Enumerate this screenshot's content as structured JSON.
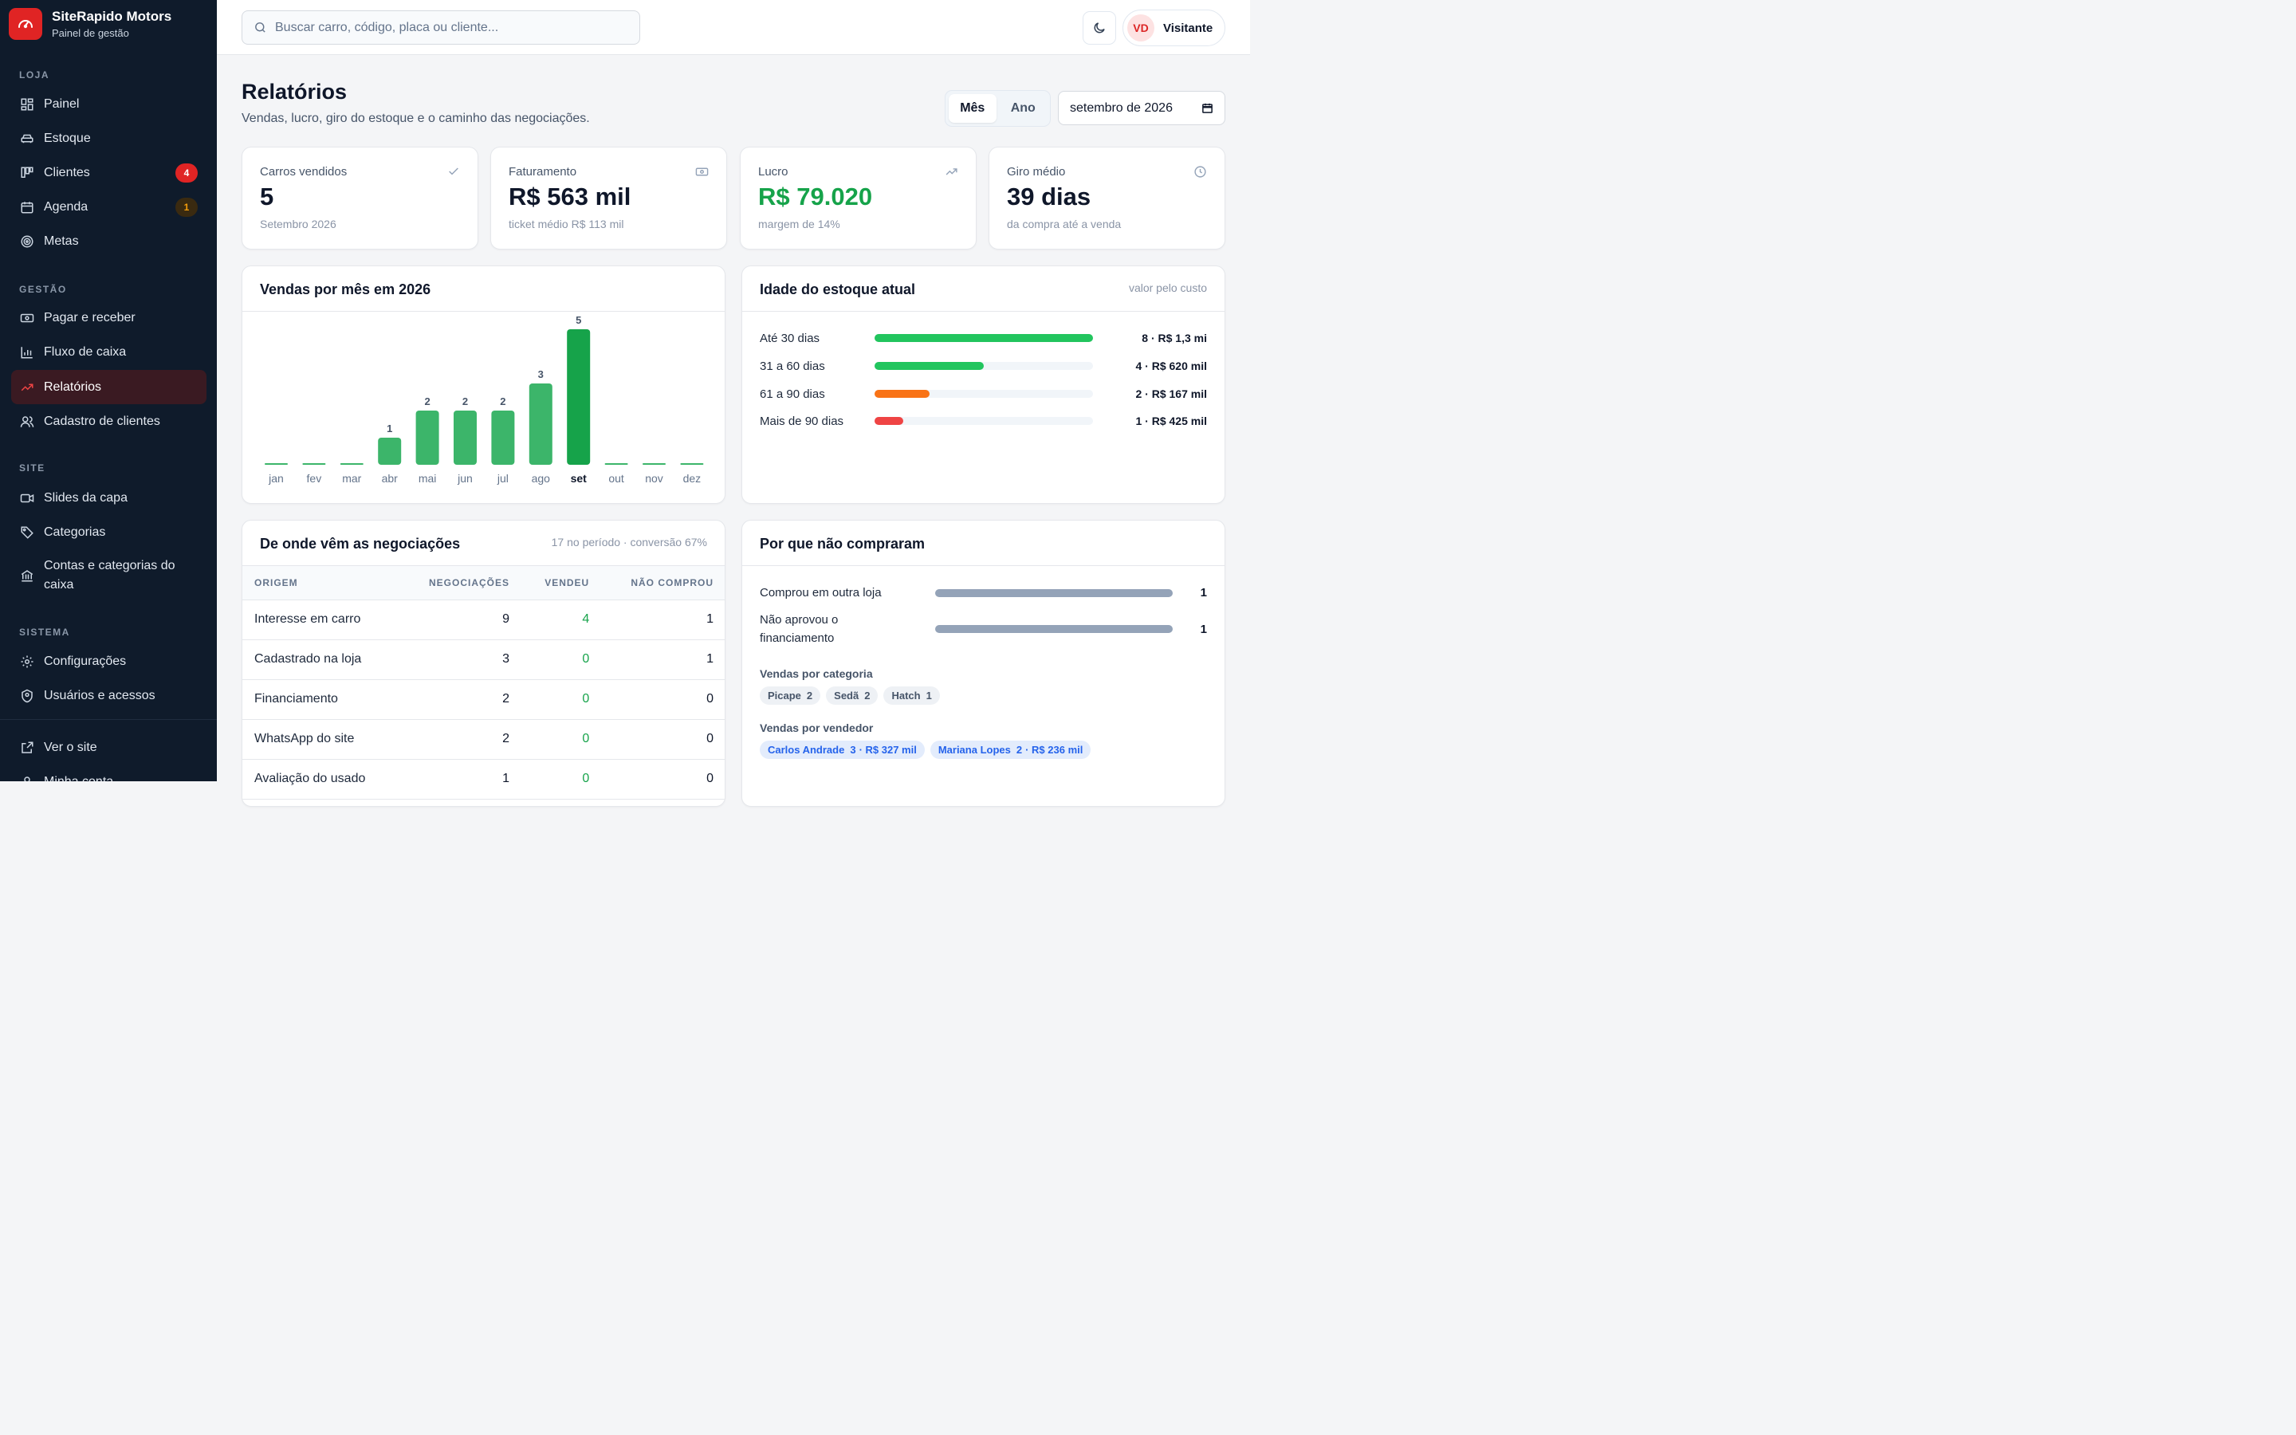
{
  "brand": {
    "name": "SiteRapido Motors",
    "subtitle": "Painel de gestão"
  },
  "sidebar": {
    "sections": {
      "loja": "LOJA",
      "gestao": "GESTÃO",
      "site": "SITE",
      "sistema": "SISTEMA"
    },
    "items": {
      "painel": "Painel",
      "estoque": "Estoque",
      "clientes": "Clientes",
      "clientes_badge": "4",
      "agenda": "Agenda",
      "agenda_badge": "1",
      "metas": "Metas",
      "pagar": "Pagar e receber",
      "fluxo": "Fluxo de caixa",
      "relatorios": "Relatórios",
      "cadastro": "Cadastro de clientes",
      "slides": "Slides da capa",
      "categorias": "Categorias",
      "contas": "Contas e categorias do caixa",
      "configuracoes": "Configurações",
      "usuarios": "Usuários e acessos",
      "ver_site": "Ver o site",
      "minha_conta": "Minha conta"
    }
  },
  "topbar": {
    "search_placeholder": "Buscar carro, código, placa ou cliente...",
    "user_initials": "VD",
    "user_name": "Visitante"
  },
  "header": {
    "title": "Relatórios",
    "subtitle": "Vendas, lucro, giro do estoque e o caminho das negociações.",
    "period_month": "Mês",
    "period_year": "Ano",
    "month_value": "setembro de 2026"
  },
  "kpis": [
    {
      "label": "Carros vendidos",
      "value": "5",
      "sub": "Setembro 2026",
      "icon": "check-icon"
    },
    {
      "label": "Faturamento",
      "value": "R$ 563 mil",
      "sub": "ticket médio R$ 113 mil",
      "icon": "money-icon"
    },
    {
      "label": "Lucro",
      "value": "R$ 79.020",
      "sub": "margem de 14%",
      "icon": "trending-up-icon",
      "color": "#16a34a"
    },
    {
      "label": "Giro médio",
      "value": "39 dias",
      "sub": "da compra até a venda",
      "icon": "clock-icon"
    }
  ],
  "sales_chart": {
    "title": "Vendas por mês em 2026"
  },
  "chart_data": {
    "type": "bar",
    "categories": [
      "jan",
      "fev",
      "mar",
      "abr",
      "mai",
      "jun",
      "jul",
      "ago",
      "set",
      "out",
      "nov",
      "dez"
    ],
    "values": [
      0,
      0,
      0,
      1,
      2,
      2,
      2,
      3,
      5,
      0,
      0,
      0
    ],
    "highlight": "set",
    "colors": {
      "bar": "#3cb56a",
      "highlight": "#16a34a"
    }
  },
  "stock_age": {
    "title": "Idade do estoque atual",
    "note": "valor pelo custo",
    "rows": [
      {
        "label": "Até 30 dias",
        "value": "8 · R$ 1,3 mi",
        "fraction": 1.0,
        "color": "#22c55e"
      },
      {
        "label": "31 a 60 dias",
        "value": "4 · R$ 620 mil",
        "fraction": 0.5,
        "color": "#22c55e"
      },
      {
        "label": "61 a 90 dias",
        "value": "2 · R$ 167 mil",
        "fraction": 0.25,
        "color": "#f97316"
      },
      {
        "label": "Mais de 90 dias",
        "value": "1 · R$ 425 mil",
        "fraction": 0.13,
        "color": "#ef4444"
      }
    ]
  },
  "origins": {
    "title": "De onde vêm as negociações",
    "note": "17 no período · conversão 67%",
    "headers": [
      "ORIGEM",
      "NEGOCIAÇÕES",
      "VENDEU",
      "NÃO COMPROU"
    ],
    "rows": [
      [
        "Interesse em carro",
        "9",
        "4",
        "1"
      ],
      [
        "Cadastrado na loja",
        "3",
        "0",
        "1"
      ],
      [
        "Financiamento",
        "2",
        "0",
        "0"
      ],
      [
        "WhatsApp do site",
        "2",
        "0",
        "0"
      ],
      [
        "Avaliação do usado",
        "1",
        "0",
        "0"
      ]
    ]
  },
  "why_not": {
    "title": "Por que não compraram",
    "rows": [
      {
        "label": "Comprou em outra loja",
        "value": "1",
        "fraction": 1.0
      },
      {
        "label": "Não aprovou o financiamento",
        "value": "1",
        "fraction": 1.0
      }
    ],
    "by_category_title": "Vendas por categoria",
    "by_category": [
      {
        "name": "Picape",
        "count": "2"
      },
      {
        "name": "Sedã",
        "count": "2"
      },
      {
        "name": "Hatch",
        "count": "1"
      }
    ],
    "by_seller_title": "Vendas por vendedor",
    "by_seller": [
      {
        "name": "Carlos Andrade",
        "count": "3",
        "amount": "· R$ 327 mil"
      },
      {
        "name": "Mariana Lopes",
        "count": "2",
        "amount": "· R$ 236 mil"
      }
    ]
  }
}
